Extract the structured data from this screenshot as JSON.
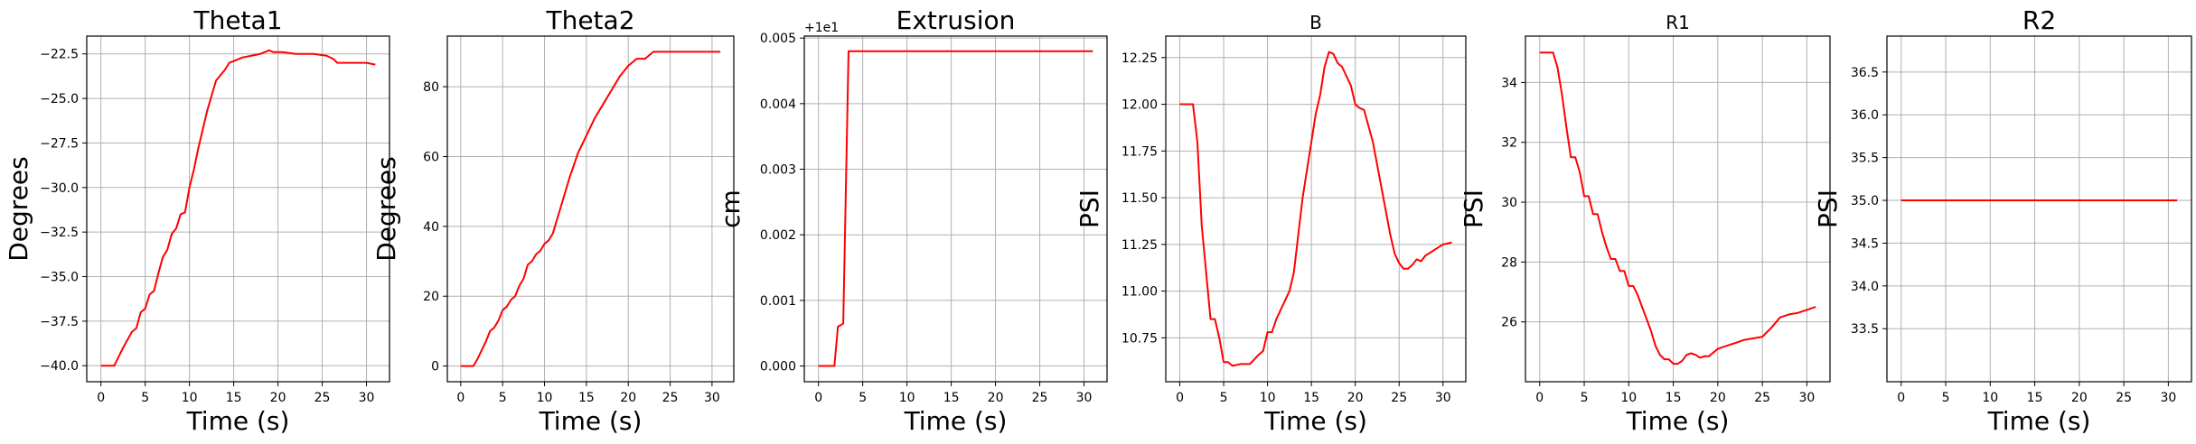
{
  "chart_data": [
    {
      "type": "line",
      "title": "Theta1",
      "xlabel": "Time (s)",
      "ylabel": "Degrees",
      "xlim": [
        -1.6,
        32.6
      ],
      "ylim": [
        -40.9,
        -21.5
      ],
      "xticks": [
        0,
        5,
        10,
        15,
        20,
        25,
        30
      ],
      "xtick_labels": [
        "0",
        "5",
        "10",
        "15",
        "20",
        "25",
        "30"
      ],
      "yticks": [
        -40,
        -37.5,
        -35,
        -32.5,
        -30,
        -27.5,
        -25,
        -22.5
      ],
      "ytick_labels": [
        "−40.0",
        "−37.5",
        "−35.0",
        "−32.5",
        "−30.0",
        "−27.5",
        "−25.0",
        "−22.5"
      ],
      "grid": true,
      "color": "#ff0000",
      "x": [
        0,
        1.5,
        2.5,
        3.5,
        4.0,
        4.5,
        5.0,
        5.5,
        6.0,
        6.5,
        7.0,
        7.5,
        8.0,
        8.5,
        9.0,
        9.5,
        10.0,
        10.5,
        11.0,
        12.0,
        13.0,
        14.0,
        14.5,
        15.0,
        16.0,
        17.0,
        18.0,
        19.0,
        19.5,
        20.5,
        22.0,
        24.0,
        25.5,
        26.3,
        26.7,
        28.0,
        30.0,
        31.0
      ],
      "y": [
        -40.0,
        -40.0,
        -39.0,
        -38.1,
        -37.9,
        -37.0,
        -36.8,
        -36.0,
        -35.8,
        -34.8,
        -33.9,
        -33.5,
        -32.6,
        -32.3,
        -31.5,
        -31.4,
        -30.0,
        -29.0,
        -27.8,
        -25.7,
        -24.0,
        -23.4,
        -23.0,
        -22.9,
        -22.7,
        -22.6,
        -22.5,
        -22.3,
        -22.4,
        -22.4,
        -22.5,
        -22.5,
        -22.6,
        -22.8,
        -23.0,
        -23.0,
        -23.0,
        -23.1
      ]
    },
    {
      "type": "line",
      "title": "Theta2",
      "xlabel": "Time (s)",
      "ylabel": "Degrees",
      "xlim": [
        -1.6,
        32.6
      ],
      "ylim": [
        -4.5,
        94.5
      ],
      "xticks": [
        0,
        5,
        10,
        15,
        20,
        25,
        30
      ],
      "xtick_labels": [
        "0",
        "5",
        "10",
        "15",
        "20",
        "25",
        "30"
      ],
      "yticks": [
        0,
        20,
        40,
        60,
        80
      ],
      "ytick_labels": [
        "0",
        "20",
        "40",
        "60",
        "80"
      ],
      "grid": true,
      "color": "#ff0000",
      "x": [
        0,
        1.5,
        2.0,
        3.0,
        3.5,
        4.0,
        4.5,
        5.0,
        5.5,
        6.0,
        6.5,
        7.0,
        7.5,
        8.0,
        8.5,
        9.0,
        9.5,
        10.0,
        10.5,
        11.0,
        12.0,
        13.0,
        14.0,
        15.0,
        16.0,
        17.0,
        18.0,
        19.0,
        20.0,
        20.5,
        21.0,
        22.0,
        23.0,
        24.0,
        25.0,
        26.0,
        28.0,
        31.0
      ],
      "y": [
        0,
        0,
        2,
        7,
        10,
        11,
        13,
        16,
        17,
        19,
        20,
        23,
        25,
        29,
        30,
        32,
        33,
        35,
        36,
        38,
        46,
        54,
        61,
        66,
        71,
        75,
        79,
        83,
        86,
        87,
        88,
        88,
        90,
        90,
        90,
        90,
        90,
        90
      ]
    },
    {
      "type": "line",
      "title": "Extrusion",
      "xlabel": "Time (s)",
      "ylabel": "cm",
      "offset_label": "+1e1",
      "xlim": [
        -1.6,
        32.6
      ],
      "ylim": [
        -0.00024,
        0.00503
      ],
      "xticks": [
        0,
        5,
        10,
        15,
        20,
        25,
        30
      ],
      "xtick_labels": [
        "0",
        "5",
        "10",
        "15",
        "20",
        "25",
        "30"
      ],
      "yticks": [
        0,
        0.001,
        0.002,
        0.003,
        0.004,
        0.005
      ],
      "ytick_labels": [
        "0.000",
        "0.001",
        "0.002",
        "0.003",
        "0.004",
        "0.005"
      ],
      "grid": true,
      "color": "#ff0000",
      "x": [
        0,
        1.8,
        2.2,
        2.5,
        2.8,
        3.4,
        31.0
      ],
      "y": [
        0,
        0,
        0.0006,
        0.00062,
        0.00065,
        0.0048,
        0.0048
      ]
    },
    {
      "type": "line",
      "title": "B",
      "xlabel": "Time (s)",
      "ylabel": "PSI",
      "xlim": [
        -1.6,
        32.6
      ],
      "ylim": [
        10.515,
        12.365
      ],
      "xticks": [
        0,
        5,
        10,
        15,
        20,
        25,
        30
      ],
      "xtick_labels": [
        "0",
        "5",
        "10",
        "15",
        "20",
        "25",
        "30"
      ],
      "yticks": [
        10.75,
        11.0,
        11.25,
        11.5,
        11.75,
        12.0,
        12.25
      ],
      "ytick_labels": [
        "10.75",
        "11.00",
        "11.25",
        "11.50",
        "11.75",
        "12.00",
        "12.25"
      ],
      "grid": true,
      "color": "#ff0000",
      "x": [
        0,
        1.5,
        2.0,
        2.5,
        3.0,
        3.5,
        4.0,
        4.5,
        5.0,
        5.5,
        6.0,
        7.0,
        8.0,
        9.0,
        9.5,
        10.0,
        10.5,
        11.0,
        11.5,
        12.0,
        12.5,
        13.0,
        13.5,
        14.0,
        14.5,
        15.0,
        15.5,
        16.0,
        16.5,
        17.0,
        17.5,
        18.0,
        18.5,
        19.0,
        19.5,
        20.0,
        20.5,
        21.0,
        22.0,
        23.0,
        24.0,
        24.5,
        25.0,
        25.5,
        26.0,
        26.5,
        27.0,
        27.5,
        28.0,
        29.0,
        30.0,
        31.0
      ],
      "y": [
        12.0,
        12.0,
        11.8,
        11.35,
        11.1,
        10.85,
        10.85,
        10.75,
        10.62,
        10.62,
        10.6,
        10.61,
        10.61,
        10.66,
        10.68,
        10.78,
        10.78,
        10.85,
        10.9,
        10.95,
        11.0,
        11.1,
        11.3,
        11.5,
        11.65,
        11.8,
        11.95,
        12.05,
        12.2,
        12.28,
        12.27,
        12.22,
        12.2,
        12.15,
        12.1,
        12.0,
        11.98,
        11.97,
        11.8,
        11.55,
        11.3,
        11.2,
        11.15,
        11.12,
        11.12,
        11.14,
        11.17,
        11.16,
        11.19,
        11.22,
        11.25,
        11.26
      ]
    },
    {
      "type": "line",
      "title": "R1",
      "xlabel": "Time (s)",
      "ylabel": "PSI",
      "xlim": [
        -1.6,
        32.6
      ],
      "ylim": [
        24.0,
        35.55
      ],
      "xticks": [
        0,
        5,
        10,
        15,
        20,
        25,
        30
      ],
      "xtick_labels": [
        "0",
        "5",
        "10",
        "15",
        "20",
        "25",
        "30"
      ],
      "yticks": [
        26,
        28,
        30,
        32,
        34
      ],
      "ytick_labels": [
        "26",
        "28",
        "30",
        "32",
        "34"
      ],
      "grid": true,
      "color": "#ff0000",
      "x": [
        0,
        1.5,
        2.0,
        2.5,
        3.0,
        3.5,
        4.0,
        4.5,
        5.0,
        5.5,
        6.0,
        6.5,
        7.0,
        7.5,
        8.0,
        8.5,
        9.0,
        9.5,
        10.0,
        10.5,
        11.0,
        11.5,
        12.0,
        12.5,
        13.0,
        13.5,
        14.0,
        14.5,
        15.0,
        15.5,
        16.0,
        16.5,
        17.0,
        17.5,
        18.0,
        18.5,
        19.0,
        20.0,
        21.0,
        22.0,
        23.0,
        24.0,
        25.0,
        26.0,
        27.0,
        28.0,
        29.0,
        30.0,
        31.0
      ],
      "y": [
        35.0,
        35.0,
        34.5,
        33.6,
        32.5,
        31.5,
        31.5,
        31.0,
        30.2,
        30.2,
        29.6,
        29.6,
        29.0,
        28.5,
        28.1,
        28.1,
        27.7,
        27.7,
        27.2,
        27.2,
        26.9,
        26.5,
        26.1,
        25.7,
        25.2,
        24.9,
        24.75,
        24.75,
        24.6,
        24.6,
        24.7,
        24.9,
        24.95,
        24.9,
        24.8,
        24.85,
        24.85,
        25.1,
        25.2,
        25.3,
        25.4,
        25.45,
        25.5,
        25.8,
        26.15,
        26.25,
        26.3,
        26.4,
        26.5
      ]
    },
    {
      "type": "line",
      "title": "R2",
      "xlabel": "Time (s)",
      "ylabel": "PSI",
      "xlim": [
        -1.6,
        32.6
      ],
      "ylim": [
        32.88,
        36.92
      ],
      "xticks": [
        0,
        5,
        10,
        15,
        20,
        25,
        30
      ],
      "xtick_labels": [
        "0",
        "5",
        "10",
        "15",
        "20",
        "25",
        "30"
      ],
      "yticks": [
        33.5,
        34.0,
        34.5,
        35.0,
        35.5,
        36.0,
        36.5
      ],
      "ytick_labels": [
        "33.5",
        "34.0",
        "34.5",
        "35.0",
        "35.5",
        "36.0",
        "36.5"
      ],
      "grid": true,
      "color": "#ff0000",
      "x": [
        0,
        31.0
      ],
      "y": [
        35.0,
        35.0
      ]
    }
  ]
}
